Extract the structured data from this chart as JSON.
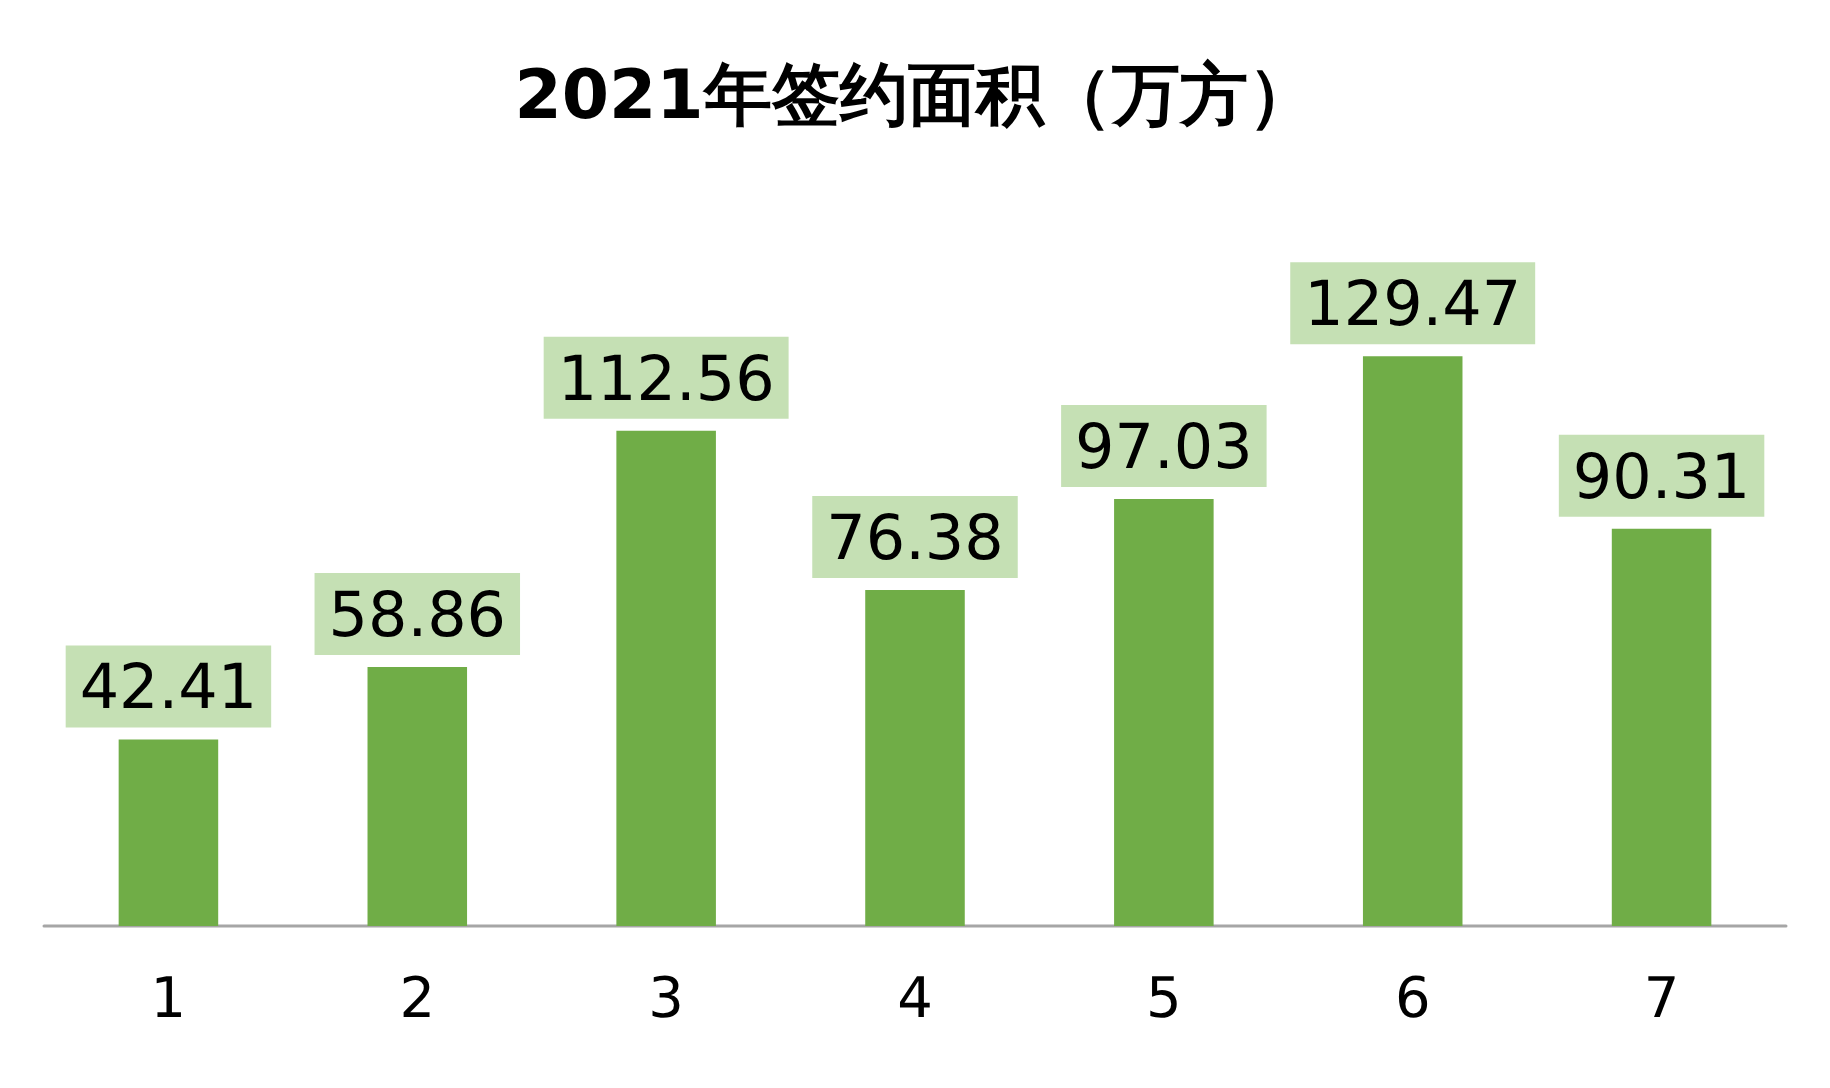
{
  "chart_data": {
    "type": "bar",
    "title": "2021年签约面积（万方）",
    "categories": [
      "1",
      "2",
      "3",
      "4",
      "5",
      "6",
      "7"
    ],
    "values": [
      42.41,
      58.86,
      112.56,
      76.38,
      97.03,
      129.47,
      90.31
    ],
    "color": "#70ad47",
    "data_labels": true
  }
}
